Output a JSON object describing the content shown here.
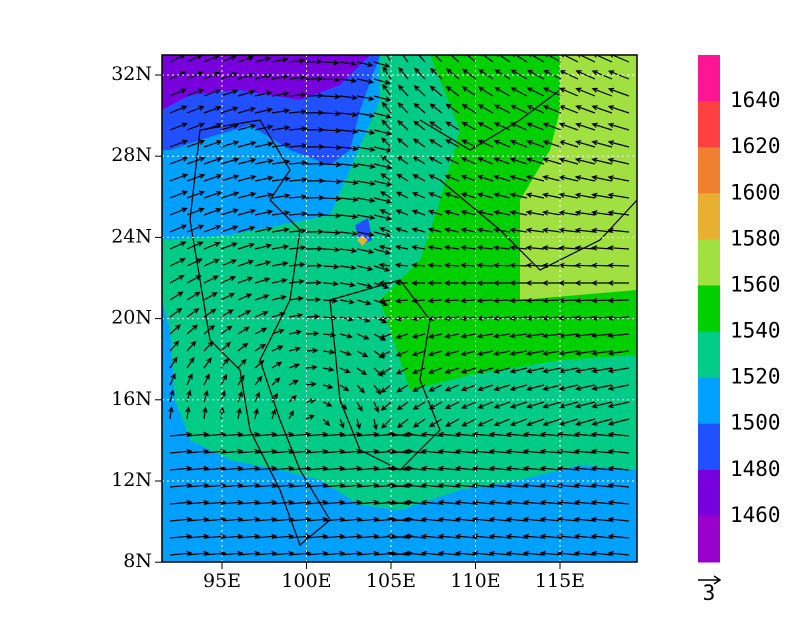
{
  "map": {
    "lat_labels": [
      "32N",
      "28N",
      "24N",
      "20N",
      "16N",
      "12N",
      "8N"
    ],
    "lon_labels": [
      "95E",
      "100E",
      "105E",
      "110E",
      "115E"
    ]
  },
  "colorbar": {
    "labels": [
      "1640",
      "1620",
      "1600",
      "1580",
      "1560",
      "1540",
      "1520",
      "1500",
      "1480",
      "1460"
    ],
    "colors": [
      "#ff1493",
      "#ff4040",
      "#f08030",
      "#e8b030",
      "#a0e040",
      "#00d000",
      "#00cc88",
      "#00a0ff",
      "#2050ff",
      "#7700dd",
      "#9900cc"
    ]
  },
  "vector_reference": {
    "label": "3"
  }
}
